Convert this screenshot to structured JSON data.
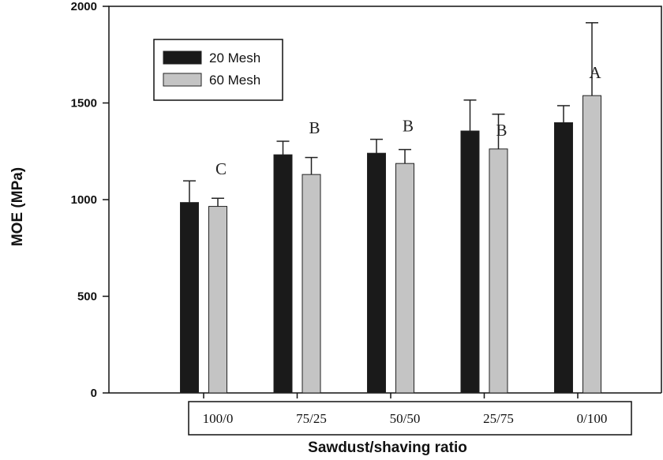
{
  "chart_data": {
    "type": "bar",
    "title": "",
    "xlabel": "Sawdust/shaving ratio",
    "ylabel": "MOE (MPa)",
    "ylim": [
      0,
      2000
    ],
    "yticks": [
      0,
      500,
      1000,
      1500,
      2000
    ],
    "categories": [
      "100/0",
      "75/25",
      "50/50",
      "25/75",
      "0/100"
    ],
    "series": [
      {
        "name": "20 Mesh",
        "color": "#1a1a1a",
        "values": [
          985,
          1232,
          1240,
          1355,
          1398
        ],
        "errors": [
          112,
          70,
          72,
          160,
          88
        ]
      },
      {
        "name": "60 Mesh",
        "color": "#c4c4c4",
        "values": [
          965,
          1130,
          1187,
          1262,
          1538
        ],
        "errors": [
          42,
          88,
          72,
          180,
          377
        ]
      }
    ],
    "group_letters": [
      "C",
      "B",
      "B",
      "B",
      "A"
    ],
    "grid": false,
    "legend_position": "top-left"
  }
}
